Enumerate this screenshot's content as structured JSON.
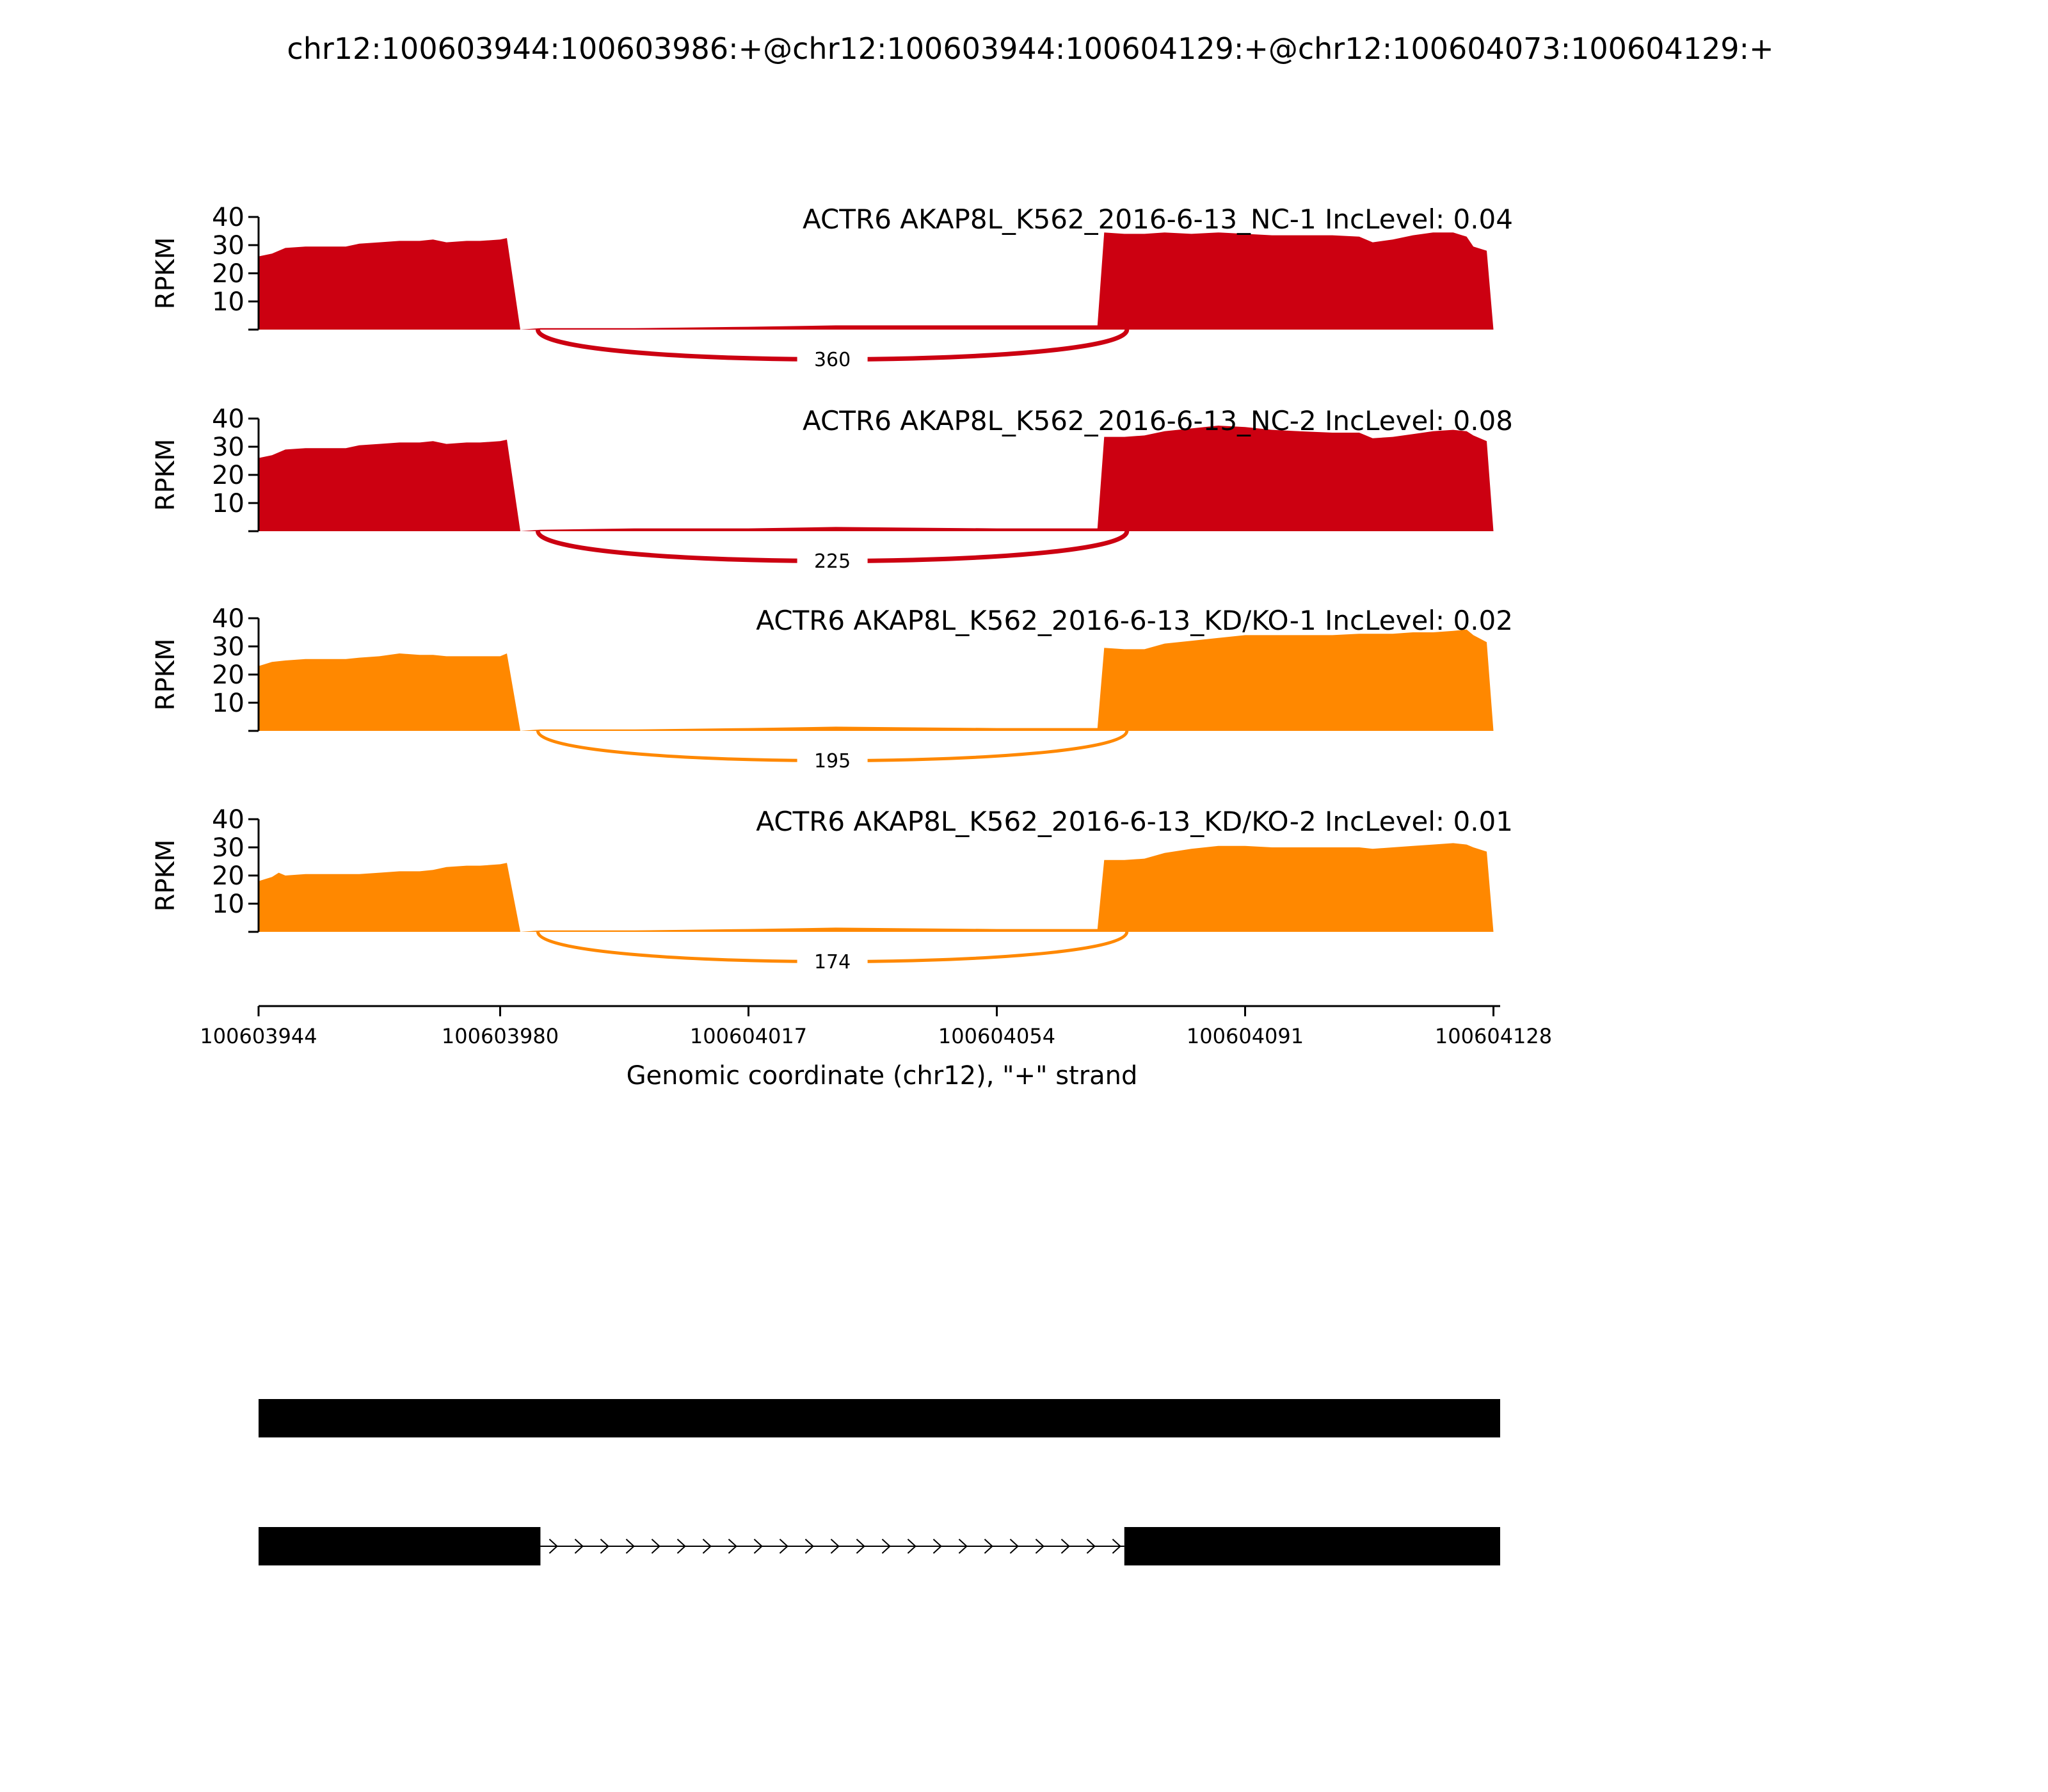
{
  "figure": {
    "title": "chr12:100603944:100603986:+@chr12:100603944:100604129:+@chr12:100604073:100604129:+",
    "y_axis_label": "RPKM",
    "x_axis_label": "Genomic coordinate (chr12), \"+\" strand"
  },
  "colors": {
    "nc": "#cc0011",
    "kd": "#ff8800",
    "gene_model": "#000000"
  },
  "chart_data": {
    "type": "area",
    "title": "chr12:100603944:100603986:+@chr12:100603944:100604129:+@chr12:100604073:100604129:+",
    "xlabel": "Genomic coordinate (chr12), \"+\" strand",
    "ylabel": "RPKM",
    "xlim": [
      100603944,
      100604129
    ],
    "ylim": [
      0,
      40
    ],
    "x_ticks": [
      100603944,
      100603980,
      100604017,
      100604054,
      100604091,
      100604128
    ],
    "y_ticks": [
      10,
      20,
      30,
      40
    ],
    "series": [
      {
        "name": "ACTR6 AKAP8L_K562_2016-6-13_NC-1 IncLevel: 0.04",
        "color_key": "nc",
        "junction_count": "360",
        "points": [
          [
            100603944,
            26
          ],
          [
            100603946,
            27
          ],
          [
            100603948,
            29
          ],
          [
            100603951,
            29.5
          ],
          [
            100603954,
            29.5
          ],
          [
            100603957,
            29.5
          ],
          [
            100603959,
            30.5
          ],
          [
            100603962,
            31
          ],
          [
            100603965,
            31.5
          ],
          [
            100603968,
            31.5
          ],
          [
            100603970,
            32
          ],
          [
            100603972,
            31
          ],
          [
            100603975,
            31.5
          ],
          [
            100603977,
            31.5
          ],
          [
            100603980,
            32
          ],
          [
            100603981,
            32.5
          ],
          [
            100603983,
            0
          ],
          [
            100603986,
            0.5
          ],
          [
            100604000,
            0.5
          ],
          [
            100604017,
            1
          ],
          [
            100604030,
            1.5
          ],
          [
            100604054,
            1.5
          ],
          [
            100604069,
            1.5
          ],
          [
            100604070,
            34.5
          ],
          [
            100604073,
            34
          ],
          [
            100604076,
            34
          ],
          [
            100604079,
            34.5
          ],
          [
            100604083,
            34
          ],
          [
            100604087,
            34.5
          ],
          [
            100604091,
            34
          ],
          [
            100604095,
            33.5
          ],
          [
            100604099,
            33.5
          ],
          [
            100604104,
            33.5
          ],
          [
            100604108,
            33
          ],
          [
            100604110,
            31
          ],
          [
            100604113,
            32
          ],
          [
            100604116,
            33.5
          ],
          [
            100604119,
            34.5
          ],
          [
            100604122,
            34.5
          ],
          [
            100604124,
            33
          ],
          [
            100604125,
            29.5
          ],
          [
            100604127,
            28
          ],
          [
            100604128,
            0
          ]
        ]
      },
      {
        "name": "ACTR6 AKAP8L_K562_2016-6-13_NC-2 IncLevel: 0.08",
        "color_key": "nc",
        "junction_count": "225",
        "points": [
          [
            100603944,
            26
          ],
          [
            100603946,
            27
          ],
          [
            100603948,
            29
          ],
          [
            100603951,
            29.5
          ],
          [
            100603954,
            29.5
          ],
          [
            100603957,
            29.5
          ],
          [
            100603959,
            30.5
          ],
          [
            100603962,
            31
          ],
          [
            100603965,
            31.5
          ],
          [
            100603968,
            31.5
          ],
          [
            100603970,
            32
          ],
          [
            100603972,
            31
          ],
          [
            100603975,
            31.5
          ],
          [
            100603977,
            31.5
          ],
          [
            100603980,
            32
          ],
          [
            100603981,
            32.5
          ],
          [
            100603983,
            0
          ],
          [
            100603986,
            0.5
          ],
          [
            100604000,
            1
          ],
          [
            100604017,
            1
          ],
          [
            100604030,
            1.5
          ],
          [
            100604054,
            1
          ],
          [
            100604069,
            1
          ],
          [
            100604070,
            33.5
          ],
          [
            100604073,
            33.5
          ],
          [
            100604076,
            34
          ],
          [
            100604079,
            35.5
          ],
          [
            100604083,
            36.5
          ],
          [
            100604087,
            37.5
          ],
          [
            100604091,
            37
          ],
          [
            100604095,
            36
          ],
          [
            100604099,
            35.5
          ],
          [
            100604104,
            35
          ],
          [
            100604108,
            35
          ],
          [
            100604110,
            33
          ],
          [
            100604113,
            33.5
          ],
          [
            100604116,
            34.5
          ],
          [
            100604119,
            35.5
          ],
          [
            100604122,
            36
          ],
          [
            100604124,
            35.5
          ],
          [
            100604125,
            34
          ],
          [
            100604127,
            32
          ],
          [
            100604128,
            0
          ]
        ]
      },
      {
        "name": "ACTR6 AKAP8L_K562_2016-6-13_KD/KO-1 IncLevel: 0.02",
        "color_key": "kd",
        "junction_count": "195",
        "points": [
          [
            100603944,
            23
          ],
          [
            100603946,
            24.5
          ],
          [
            100603948,
            25
          ],
          [
            100603951,
            25.5
          ],
          [
            100603954,
            25.5
          ],
          [
            100603957,
            25.5
          ],
          [
            100603959,
            26
          ],
          [
            100603962,
            26.5
          ],
          [
            100603965,
            27.5
          ],
          [
            100603968,
            27
          ],
          [
            100603970,
            27
          ],
          [
            100603972,
            26.5
          ],
          [
            100603975,
            26.5
          ],
          [
            100603977,
            26.5
          ],
          [
            100603980,
            26.5
          ],
          [
            100603981,
            27.5
          ],
          [
            100603983,
            0
          ],
          [
            100603986,
            0.5
          ],
          [
            100604000,
            0.5
          ],
          [
            100604017,
            1
          ],
          [
            100604030,
            1.5
          ],
          [
            100604054,
            1
          ],
          [
            100604069,
            1
          ],
          [
            100604070,
            29.5
          ],
          [
            100604073,
            29
          ],
          [
            100604076,
            29
          ],
          [
            100604079,
            31
          ],
          [
            100604083,
            32
          ],
          [
            100604087,
            33
          ],
          [
            100604091,
            34
          ],
          [
            100604095,
            34
          ],
          [
            100604099,
            34
          ],
          [
            100604104,
            34
          ],
          [
            100604108,
            34.5
          ],
          [
            100604110,
            34.5
          ],
          [
            100604113,
            34.5
          ],
          [
            100604116,
            35
          ],
          [
            100604119,
            35
          ],
          [
            100604122,
            35.5
          ],
          [
            100604124,
            36
          ],
          [
            100604125,
            34
          ],
          [
            100604127,
            31.5
          ],
          [
            100604128,
            0
          ]
        ]
      },
      {
        "name": "ACTR6 AKAP8L_K562_2016-6-13_KD/KO-2 IncLevel: 0.01",
        "color_key": "kd",
        "junction_count": "174",
        "points": [
          [
            100603944,
            18
          ],
          [
            100603946,
            19.5
          ],
          [
            100603947,
            21
          ],
          [
            100603948,
            20
          ],
          [
            100603951,
            20.5
          ],
          [
            100603954,
            20.5
          ],
          [
            100603957,
            20.5
          ],
          [
            100603959,
            20.5
          ],
          [
            100603962,
            21
          ],
          [
            100603965,
            21.5
          ],
          [
            100603968,
            21.5
          ],
          [
            100603970,
            22
          ],
          [
            100603972,
            23
          ],
          [
            100603975,
            23.5
          ],
          [
            100603977,
            23.5
          ],
          [
            100603980,
            24
          ],
          [
            100603981,
            24.5
          ],
          [
            100603983,
            0
          ],
          [
            100603986,
            0.5
          ],
          [
            100604000,
            0.5
          ],
          [
            100604017,
            1
          ],
          [
            100604030,
            1.5
          ],
          [
            100604054,
            1
          ],
          [
            100604069,
            1
          ],
          [
            100604070,
            25.5
          ],
          [
            100604073,
            25.5
          ],
          [
            100604076,
            26
          ],
          [
            100604079,
            28
          ],
          [
            100604083,
            29.5
          ],
          [
            100604087,
            30.5
          ],
          [
            100604091,
            30.5
          ],
          [
            100604095,
            30
          ],
          [
            100604099,
            30
          ],
          [
            100604104,
            30
          ],
          [
            100604108,
            30
          ],
          [
            100604110,
            29.5
          ],
          [
            100604113,
            30
          ],
          [
            100604116,
            30.5
          ],
          [
            100604119,
            31
          ],
          [
            100604122,
            31.5
          ],
          [
            100604124,
            31
          ],
          [
            100604125,
            30
          ],
          [
            100604127,
            28.5
          ],
          [
            100604128,
            0
          ]
        ]
      }
    ],
    "gene_models": [
      {
        "exons": [
          [
            100603944,
            100604129
          ]
        ]
      },
      {
        "exons": [
          [
            100603944,
            100603986
          ],
          [
            100604073,
            100604129
          ]
        ]
      }
    ]
  }
}
